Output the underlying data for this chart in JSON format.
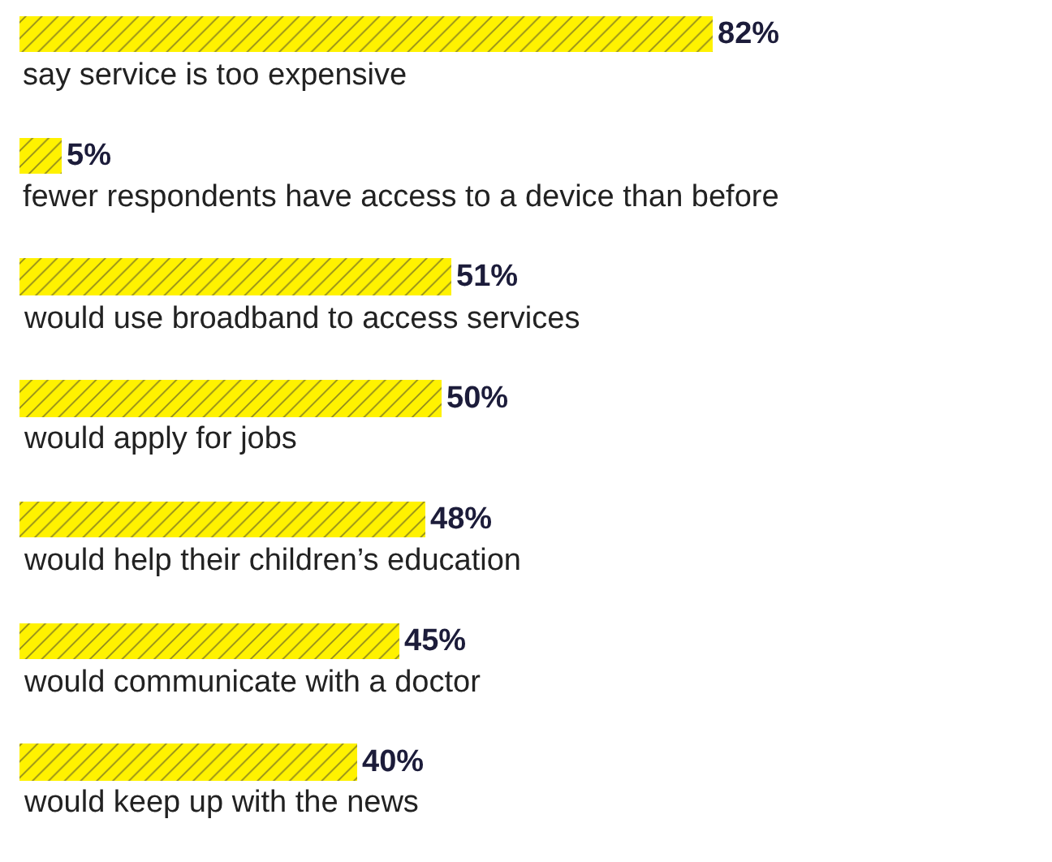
{
  "chart_data": {
    "type": "bar",
    "orientation": "horizontal",
    "data_labels": true,
    "color": "#fff200",
    "categories": [
      "say service is too expensive",
      "fewer respondents have access to a device than before",
      "would use broadband to access services",
      "would apply for jobs",
      "would help their children’s education",
      "would communicate with a doctor",
      "would keep up with the news"
    ],
    "values": [
      82,
      5,
      51,
      50,
      48,
      45,
      40
    ],
    "value_labels": [
      "82%",
      "5%",
      "51%",
      "50%",
      "48%",
      "45%",
      "40%"
    ],
    "legend": false
  }
}
